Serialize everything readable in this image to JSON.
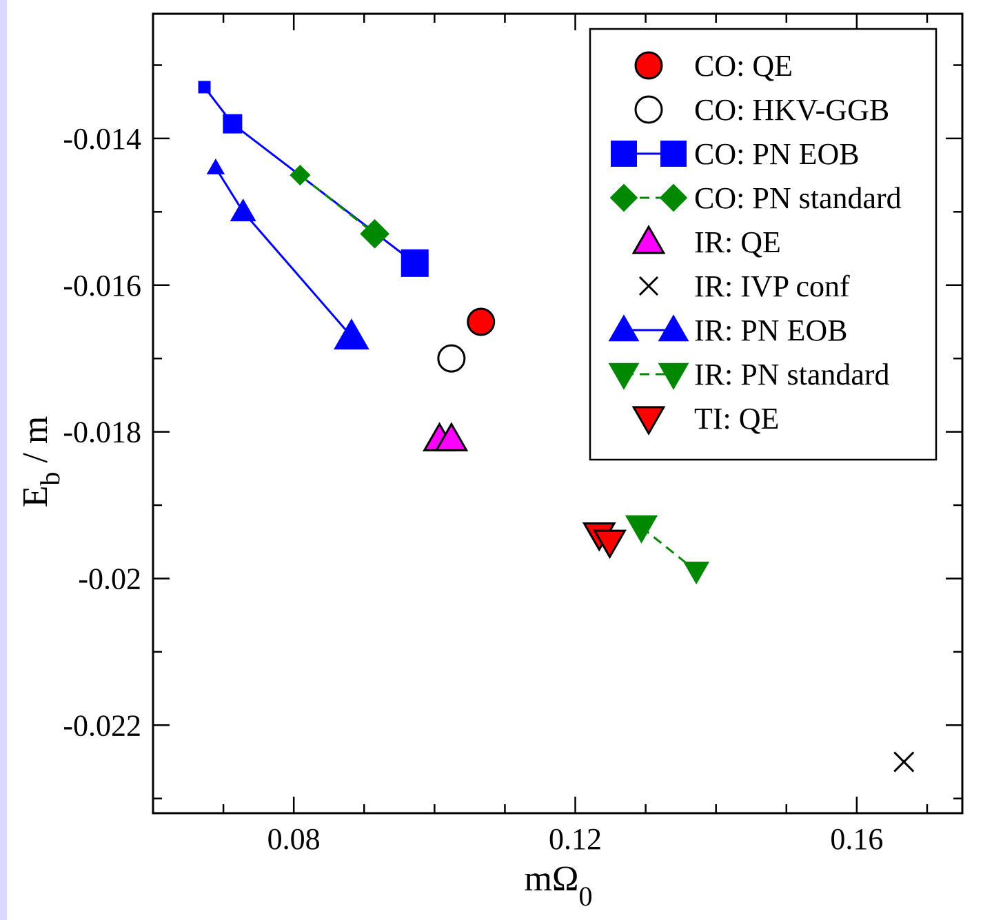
{
  "chart_data": {
    "type": "scatter",
    "xlabel": "mΩ",
    "xlabel_sub": "0",
    "ylabel": "E",
    "ylabel_sub": "b",
    "ylabel_suffix": " / m",
    "xlim": [
      0.06,
      0.175
    ],
    "ylim": [
      -0.0232,
      -0.0123
    ],
    "x_ticks": [
      0.08,
      0.12,
      0.16
    ],
    "x_tick_labels": [
      "0.08",
      "0.12",
      "0.16"
    ],
    "y_ticks": [
      -0.014,
      -0.016,
      -0.018,
      -0.02,
      -0.022
    ],
    "y_tick_labels": [
      "-0.014",
      "-0.016",
      "-0.018",
      "-0.02",
      "-0.022"
    ],
    "grid": false,
    "legend_position": "top-right",
    "series": [
      {
        "name": "CO: QE",
        "marker": "circle",
        "fill": "#ff0000",
        "stroke": "#000000",
        "line": "none",
        "x": [
          0.1066
        ],
        "y": [
          -0.0165
        ],
        "sizes": [
          19
        ]
      },
      {
        "name": "CO: HKV-GGB",
        "marker": "circle",
        "fill": "#ffffff",
        "stroke": "#000000",
        "line": "none",
        "x": [
          0.1024
        ],
        "y": [
          -0.017
        ],
        "sizes": [
          19
        ]
      },
      {
        "name": "CO: PN EOB",
        "marker": "square",
        "fill": "#0000ff",
        "stroke": "#0000ff",
        "line": "solid",
        "line_color": "#0000ff",
        "x": [
          0.0673,
          0.0713,
          0.0972
        ],
        "y": [
          -0.0133,
          -0.0138,
          -0.0157
        ],
        "sizes": [
          8,
          13,
          19
        ]
      },
      {
        "name": "CO: PN standard",
        "marker": "diamond",
        "fill": "#008800",
        "stroke": "#008800",
        "line": "dashed",
        "line_color": "#008800",
        "x": [
          0.0809,
          0.0915
        ],
        "y": [
          -0.0145,
          -0.0153
        ],
        "sizes": [
          13,
          19
        ]
      },
      {
        "name": "IR: QE",
        "marker": "triangle-up",
        "fill": "#ff00ff",
        "stroke": "#000000",
        "line": "none",
        "x": [
          0.1007,
          0.1024
        ],
        "y": [
          -0.0181,
          -0.0181
        ],
        "sizes": [
          19,
          19
        ]
      },
      {
        "name": "IR: IVP conf",
        "marker": "cross",
        "fill": "none",
        "stroke": "#000000",
        "line": "none",
        "x": [
          0.1667
        ],
        "y": [
          -0.0225
        ],
        "sizes": [
          14
        ]
      },
      {
        "name": "IR: PN EOB",
        "marker": "triangle-up",
        "fill": "#0000ff",
        "stroke": "#0000ff",
        "line": "solid",
        "line_color": "#0000ff",
        "x": [
          0.0689,
          0.0728,
          0.0882
        ],
        "y": [
          -0.0144,
          -0.015,
          -0.0167
        ],
        "sizes": [
          10,
          15,
          21
        ]
      },
      {
        "name": "IR: PN standard",
        "marker": "triangle-down",
        "fill": "#008800",
        "stroke": "#008800",
        "line": "dashed",
        "line_color": "#008800",
        "x": [
          0.1294,
          0.1372
        ],
        "y": [
          -0.0193,
          -0.0199
        ],
        "sizes": [
          19,
          15
        ]
      },
      {
        "name": "TI: QE",
        "marker": "triangle-down",
        "fill": "#ff0000",
        "stroke": "#000000",
        "line": "none",
        "x": [
          0.1234,
          0.1249
        ],
        "y": [
          -0.0194,
          -0.0195
        ],
        "sizes": [
          19,
          19
        ]
      }
    ]
  }
}
